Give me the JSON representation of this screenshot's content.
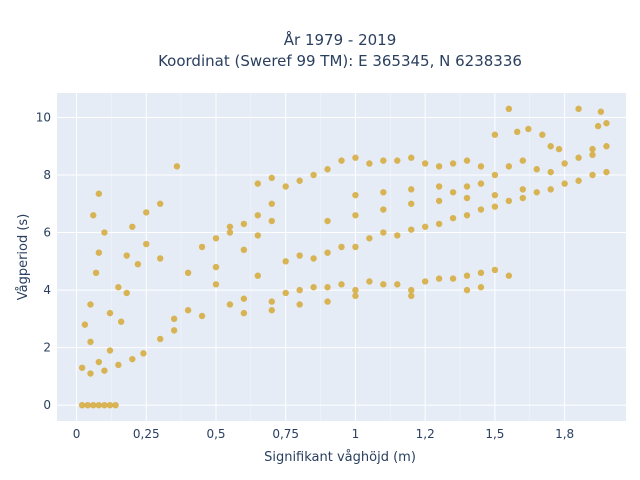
{
  "chart_data": {
    "type": "scatter",
    "title": [
      "År 1979 - 2019",
      "Koordinat (Sweref 99 TM): E 365345, N 6238336"
    ],
    "xlabel": "Signifikant våghöjd (m)",
    "ylabel": "Vågperiod (s)",
    "xlim": [
      -0.07,
      1.97
    ],
    "ylim": [
      -0.55,
      10.85
    ],
    "xticks": [
      0,
      0.25,
      0.5,
      0.75,
      1,
      1.25,
      1.5,
      1.75
    ],
    "xtick_labels": [
      "0",
      "0,25",
      "0,5",
      "0,75",
      "1",
      "1,2",
      "1,5",
      "1,8"
    ],
    "yticks": [
      0,
      2,
      4,
      6,
      8,
      10
    ],
    "ytick_labels": [
      "0",
      "2",
      "4",
      "6",
      "8",
      "10"
    ],
    "grid": true,
    "colors": {
      "marker": "#d4a52a",
      "plot_bg": "#e5ecf6",
      "grid": "#ffffff",
      "text": "#2a3f5f"
    },
    "series": [
      {
        "values": [
          [
            0.02,
            0.0
          ],
          [
            0.04,
            0.0
          ],
          [
            0.06,
            0.0
          ],
          [
            0.08,
            0.0
          ],
          [
            0.1,
            0.0
          ],
          [
            0.12,
            0.0
          ],
          [
            0.14,
            0.0
          ],
          [
            0.02,
            1.3
          ],
          [
            0.05,
            1.1
          ],
          [
            0.08,
            1.5
          ],
          [
            0.1,
            1.2
          ],
          [
            0.12,
            1.9
          ],
          [
            0.15,
            1.4
          ],
          [
            0.2,
            1.6
          ],
          [
            0.24,
            1.8
          ],
          [
            0.03,
            2.8
          ],
          [
            0.05,
            3.5
          ],
          [
            0.07,
            4.6
          ],
          [
            0.08,
            5.3
          ],
          [
            0.1,
            6.0
          ],
          [
            0.06,
            6.6
          ],
          [
            0.08,
            7.35
          ],
          [
            0.05,
            2.2
          ],
          [
            0.12,
            3.2
          ],
          [
            0.15,
            4.1
          ],
          [
            0.18,
            5.2
          ],
          [
            0.2,
            6.2
          ],
          [
            0.25,
            6.7
          ],
          [
            0.3,
            7.0
          ],
          [
            0.36,
            8.3
          ],
          [
            0.3,
            2.3
          ],
          [
            0.35,
            2.6
          ],
          [
            0.4,
            3.3
          ],
          [
            0.45,
            3.1
          ],
          [
            0.5,
            4.2
          ],
          [
            0.55,
            3.5
          ],
          [
            0.6,
            3.7
          ],
          [
            0.65,
            4.5
          ],
          [
            0.7,
            3.6
          ],
          [
            0.75,
            3.9
          ],
          [
            0.8,
            4.0
          ],
          [
            0.85,
            4.1
          ],
          [
            0.9,
            4.1
          ],
          [
            0.95,
            4.2
          ],
          [
            1.0,
            4.0
          ],
          [
            1.05,
            4.3
          ],
          [
            1.1,
            4.2
          ],
          [
            1.15,
            4.2
          ],
          [
            1.2,
            4.0
          ],
          [
            1.25,
            4.3
          ],
          [
            1.3,
            4.4
          ],
          [
            1.35,
            4.4
          ],
          [
            1.4,
            4.5
          ],
          [
            1.45,
            4.6
          ],
          [
            1.5,
            4.7
          ],
          [
            0.4,
            4.6
          ],
          [
            0.45,
            5.5
          ],
          [
            0.5,
            5.8
          ],
          [
            0.55,
            6.0
          ],
          [
            0.6,
            6.3
          ],
          [
            0.65,
            6.6
          ],
          [
            0.7,
            7.0
          ],
          [
            0.75,
            7.6
          ],
          [
            0.8,
            7.8
          ],
          [
            0.85,
            8.0
          ],
          [
            0.9,
            8.2
          ],
          [
            0.95,
            8.5
          ],
          [
            1.0,
            8.6
          ],
          [
            1.05,
            8.4
          ],
          [
            1.1,
            8.5
          ],
          [
            1.15,
            8.5
          ],
          [
            1.2,
            8.6
          ],
          [
            1.25,
            8.4
          ],
          [
            1.3,
            8.3
          ],
          [
            1.35,
            8.4
          ],
          [
            1.4,
            8.5
          ],
          [
            1.45,
            8.3
          ],
          [
            0.75,
            5.0
          ],
          [
            0.8,
            5.2
          ],
          [
            0.85,
            5.1
          ],
          [
            0.9,
            5.3
          ],
          [
            0.95,
            5.5
          ],
          [
            1.0,
            5.5
          ],
          [
            1.05,
            5.8
          ],
          [
            1.1,
            6.0
          ],
          [
            1.15,
            5.9
          ],
          [
            1.2,
            6.1
          ],
          [
            1.25,
            6.2
          ],
          [
            1.3,
            6.3
          ],
          [
            1.35,
            6.5
          ],
          [
            1.4,
            6.6
          ],
          [
            1.45,
            6.8
          ],
          [
            1.5,
            6.9
          ],
          [
            1.55,
            7.1
          ],
          [
            1.6,
            7.2
          ],
          [
            1.65,
            7.4
          ],
          [
            1.7,
            7.5
          ],
          [
            1.75,
            7.7
          ],
          [
            1.8,
            7.8
          ],
          [
            1.85,
            8.0
          ],
          [
            1.9,
            8.1
          ],
          [
            1.5,
            8.0
          ],
          [
            1.55,
            8.3
          ],
          [
            1.6,
            8.5
          ],
          [
            1.65,
            8.2
          ],
          [
            1.7,
            8.1
          ],
          [
            1.75,
            8.4
          ],
          [
            1.8,
            8.6
          ],
          [
            1.85,
            8.9
          ],
          [
            1.9,
            9.0
          ],
          [
            1.5,
            9.4
          ],
          [
            1.58,
            9.5
          ],
          [
            1.62,
            9.6
          ],
          [
            1.67,
            9.4
          ],
          [
            1.7,
            9.0
          ],
          [
            1.73,
            8.9
          ],
          [
            1.55,
            10.3
          ],
          [
            1.8,
            10.3
          ],
          [
            1.88,
            10.2
          ],
          [
            1.87,
            9.7
          ],
          [
            1.9,
            9.8
          ],
          [
            1.85,
            8.7
          ],
          [
            1.3,
            7.6
          ],
          [
            1.35,
            7.4
          ],
          [
            1.4,
            7.6
          ],
          [
            1.45,
            7.7
          ],
          [
            1.2,
            7.5
          ],
          [
            1.1,
            7.4
          ],
          [
            1.0,
            7.3
          ],
          [
            0.35,
            3.0
          ],
          [
            0.3,
            5.1
          ],
          [
            0.25,
            5.6
          ],
          [
            0.22,
            4.9
          ],
          [
            0.18,
            3.9
          ],
          [
            0.16,
            2.9
          ],
          [
            0.5,
            4.8
          ],
          [
            0.55,
            6.2
          ],
          [
            0.6,
            5.4
          ],
          [
            0.65,
            5.9
          ],
          [
            0.7,
            6.4
          ],
          [
            0.65,
            7.7
          ],
          [
            0.7,
            7.9
          ],
          [
            0.9,
            6.4
          ],
          [
            1.0,
            6.6
          ],
          [
            1.1,
            6.8
          ],
          [
            1.2,
            7.0
          ],
          [
            1.3,
            7.1
          ],
          [
            1.4,
            7.2
          ],
          [
            1.5,
            7.3
          ],
          [
            1.6,
            7.5
          ],
          [
            0.6,
            3.2
          ],
          [
            0.7,
            3.3
          ],
          [
            0.8,
            3.5
          ],
          [
            0.9,
            3.6
          ],
          [
            1.0,
            3.8
          ],
          [
            1.2,
            3.8
          ],
          [
            1.4,
            4.0
          ],
          [
            1.55,
            4.5
          ],
          [
            1.45,
            4.1
          ]
        ]
      }
    ]
  }
}
